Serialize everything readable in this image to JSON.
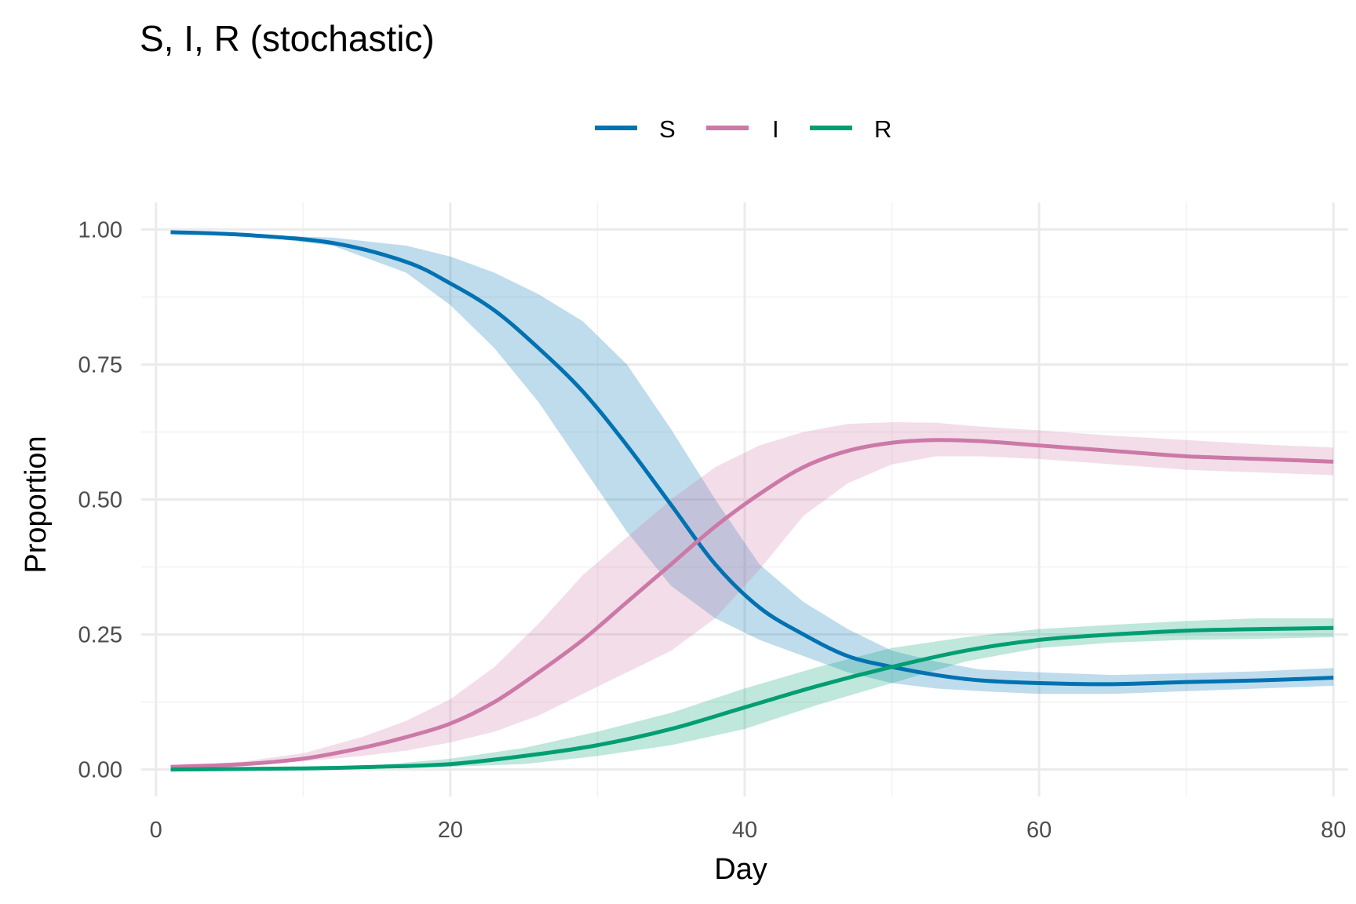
{
  "chart_data": {
    "type": "line",
    "title": "S, I, R (stochastic)",
    "xlabel": "Day",
    "ylabel": "Proportion",
    "xlim": [
      -1,
      81
    ],
    "ylim": [
      -0.05,
      1.05
    ],
    "x_ticks": [
      0,
      20,
      40,
      60,
      80
    ],
    "x_tick_labels": [
      "0",
      "20",
      "40",
      "60",
      "80"
    ],
    "y_ticks": [
      0,
      0.25,
      0.5,
      0.75,
      1
    ],
    "y_tick_labels": [
      "0.00",
      "0.25",
      "0.50",
      "0.75",
      "1.00"
    ],
    "grid": true,
    "legend_position": "top",
    "series": [
      {
        "name": "S",
        "color": "#0072B2",
        "x": [
          1,
          6,
          12,
          17,
          20,
          23,
          26,
          29,
          32,
          35,
          38,
          41,
          44,
          47,
          50,
          53,
          56,
          60,
          65,
          70,
          75,
          80
        ],
        "values": [
          0.995,
          0.99,
          0.975,
          0.94,
          0.9,
          0.85,
          0.78,
          0.7,
          0.6,
          0.49,
          0.38,
          0.3,
          0.25,
          0.21,
          0.19,
          0.175,
          0.165,
          0.16,
          0.158,
          0.162,
          0.165,
          0.17
        ],
        "lower": [
          0.995,
          0.99,
          0.97,
          0.92,
          0.86,
          0.78,
          0.68,
          0.56,
          0.44,
          0.34,
          0.28,
          0.24,
          0.21,
          0.18,
          0.16,
          0.15,
          0.145,
          0.14,
          0.14,
          0.145,
          0.15,
          0.155
        ],
        "upper": [
          0.995,
          0.99,
          0.985,
          0.97,
          0.95,
          0.92,
          0.88,
          0.83,
          0.75,
          0.63,
          0.5,
          0.38,
          0.31,
          0.26,
          0.22,
          0.2,
          0.185,
          0.18,
          0.175,
          0.178,
          0.182,
          0.188
        ]
      },
      {
        "name": "I",
        "color": "#CC79A7",
        "x": [
          1,
          6,
          10,
          14,
          17,
          20,
          23,
          26,
          29,
          32,
          35,
          38,
          41,
          44,
          47,
          50,
          53,
          56,
          60,
          65,
          70,
          75,
          80
        ],
        "values": [
          0.005,
          0.01,
          0.02,
          0.04,
          0.06,
          0.085,
          0.125,
          0.18,
          0.24,
          0.31,
          0.38,
          0.45,
          0.51,
          0.56,
          0.59,
          0.605,
          0.61,
          0.608,
          0.6,
          0.59,
          0.58,
          0.575,
          0.57
        ],
        "lower": [
          0.005,
          0.008,
          0.015,
          0.025,
          0.035,
          0.05,
          0.07,
          0.1,
          0.14,
          0.18,
          0.22,
          0.28,
          0.37,
          0.47,
          0.53,
          0.565,
          0.58,
          0.58,
          0.575,
          0.565,
          0.555,
          0.55,
          0.545
        ],
        "upper": [
          0.005,
          0.015,
          0.03,
          0.06,
          0.09,
          0.13,
          0.19,
          0.27,
          0.36,
          0.43,
          0.5,
          0.56,
          0.6,
          0.625,
          0.64,
          0.643,
          0.642,
          0.635,
          0.628,
          0.618,
          0.61,
          0.602,
          0.596
        ]
      },
      {
        "name": "R",
        "color": "#009E73",
        "x": [
          1,
          10,
          15,
          20,
          25,
          30,
          35,
          40,
          45,
          50,
          55,
          60,
          65,
          70,
          75,
          80
        ],
        "values": [
          0.0,
          0.002,
          0.005,
          0.01,
          0.025,
          0.045,
          0.075,
          0.115,
          0.155,
          0.19,
          0.22,
          0.24,
          0.25,
          0.257,
          0.26,
          0.262
        ],
        "lower": [
          0.0,
          0.001,
          0.002,
          0.005,
          0.01,
          0.025,
          0.045,
          0.075,
          0.12,
          0.16,
          0.2,
          0.225,
          0.235,
          0.24,
          0.242,
          0.245
        ],
        "upper": [
          0.0,
          0.004,
          0.008,
          0.02,
          0.04,
          0.07,
          0.105,
          0.15,
          0.19,
          0.225,
          0.245,
          0.26,
          0.268,
          0.275,
          0.28,
          0.28
        ]
      }
    ]
  }
}
